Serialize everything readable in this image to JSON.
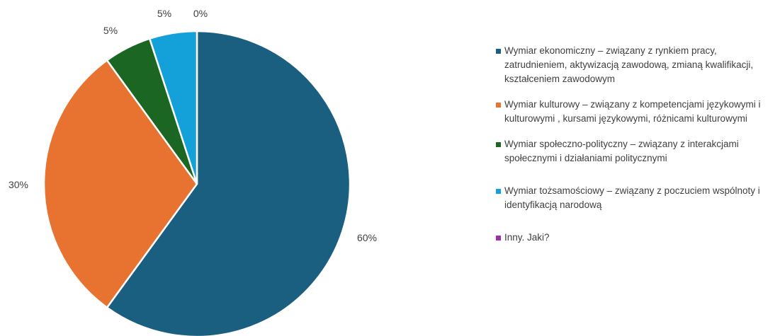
{
  "chart_data": {
    "type": "pie",
    "start_angle_deg": 0,
    "direction": "clockwise",
    "slices": [
      {
        "label": "Wymiar ekonomiczny – związany z rynkiem pracy, zatrudnieniem, aktywizacją zawodową, zmianą kwalifikacji, kształceniem zawodowym",
        "value": 60,
        "value_label": "60%",
        "color": "#1a5e80"
      },
      {
        "label": "Wymiar kulturowy – związany z kompetencjami językowymi i kulturowymi , kursami językowymi, różnicami kulturowymi",
        "value": 30,
        "value_label": "30%",
        "color": "#e87331"
      },
      {
        "label": "Wymiar społeczno-polityczny – związany z interakcjami społecznymi i działaniami politycznymi",
        "value": 5,
        "value_label": "5%",
        "color": "#1a6622"
      },
      {
        "label": "Wymiar tożsamościowy – związany z poczuciem wspólnoty i identyfikacją narodową",
        "value": 5,
        "value_label": "5%",
        "color": "#14a0d8"
      },
      {
        "label": "Inny. Jaki?",
        "value": 0,
        "value_label": "0%",
        "color": "#9b2fa8"
      }
    ],
    "legend_position": "right"
  }
}
